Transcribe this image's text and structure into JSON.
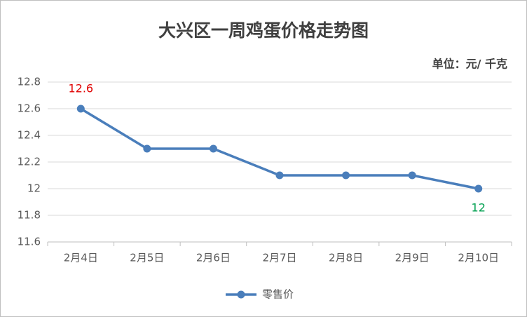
{
  "chart_data": {
    "type": "line",
    "title": "大兴区一周鸡蛋价格走势图",
    "unit": "单位：元/ 千克",
    "categories": [
      "2月4日",
      "2月5日",
      "2月6日",
      "2月7日",
      "2月8日",
      "2月9日",
      "2月10日"
    ],
    "series": [
      {
        "name": "零售价",
        "color": "#4a7ebb",
        "values": [
          12.6,
          12.3,
          12.3,
          12.1,
          12.1,
          12.1,
          12
        ],
        "value_labels": [
          "12.6",
          null,
          null,
          null,
          null,
          null,
          "12"
        ],
        "value_label_colors": [
          "#e00000",
          null,
          null,
          null,
          null,
          null,
          "#00a050"
        ]
      }
    ],
    "ylim": [
      11.6,
      12.8
    ],
    "yticks": [
      11.6,
      11.8,
      12,
      12.2,
      12.4,
      12.6,
      12.8
    ],
    "grid": true,
    "legend": "bottom"
  }
}
